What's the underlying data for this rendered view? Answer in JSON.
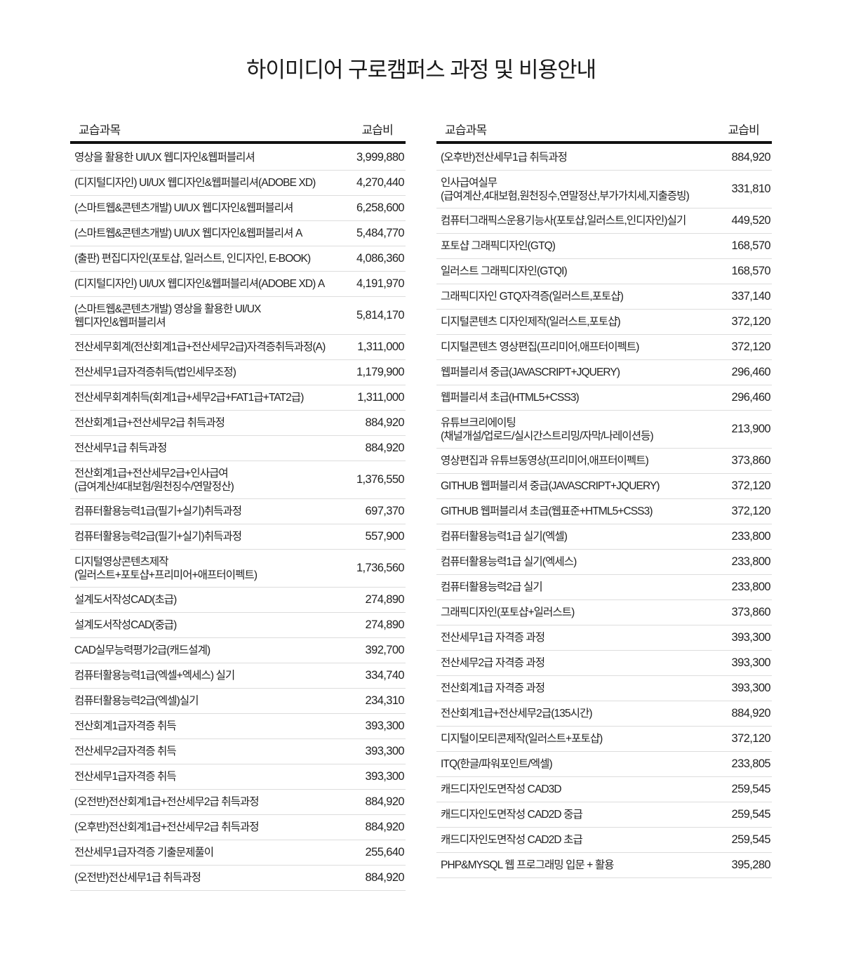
{
  "title": "하이미디어 구로캠퍼스 과정 및 비용안내",
  "tables": [
    {
      "header": {
        "course": "교습과목",
        "fee": "교습비"
      },
      "rows": [
        {
          "course": "영상을 활용한 UI/UX 웹디자인&웹퍼블리셔",
          "fee": "3,999,880"
        },
        {
          "course": "(디지털디자인) UI/UX 웹디자인&웹퍼블리셔(ADOBE XD)",
          "fee": "4,270,440"
        },
        {
          "course": "(스마트웹&콘텐츠개발) UI/UX 웹디자인&웹퍼블리셔",
          "fee": "6,258,600"
        },
        {
          "course": "(스마트웹&콘텐츠개발) UI/UX 웹디자인&웹퍼블리셔 A",
          "fee": "5,484,770"
        },
        {
          "course": "(출판) 편집디자인(포토샵, 일러스트, 인디자인, E-BOOK)",
          "fee": "4,086,360"
        },
        {
          "course": "(디지털디자인) UI/UX 웹디자인&웹퍼블리셔(ADOBE XD) A",
          "fee": "4,191,970"
        },
        {
          "course": "(스마트웹&콘텐츠개발) 영상을 활용한 UI/UX\n웹디자인&웹퍼블리셔",
          "fee": "5,814,170"
        },
        {
          "course": "전산세무회계(전산회계1급+전산세무2급)자격증취득과정(A)",
          "fee": "1,311,000"
        },
        {
          "course": "전산세무1급자격증취득(법인세무조정)",
          "fee": "1,179,900"
        },
        {
          "course": "전산세무회계취득(회계1급+세무2급+FAT1급+TAT2급)",
          "fee": "1,311,000"
        },
        {
          "course": "전산회계1급+전산세무2급 취득과정",
          "fee": "884,920"
        },
        {
          "course": "전산세무1급 취득과정",
          "fee": "884,920"
        },
        {
          "course": "전산회계1급+전산세무2급+인사급여\n(급여계산/4대보험/원천징수/연말정산)",
          "fee": "1,376,550"
        },
        {
          "course": "컴퓨터활용능력1급(필기+실기)취득과정",
          "fee": "697,370"
        },
        {
          "course": "컴퓨터활용능력2급(필기+실기)취득과정",
          "fee": "557,900"
        },
        {
          "course": "디지털영상콘텐츠제작\n(일러스트+포토샵+프리미어+애프터이펙트)",
          "fee": "1,736,560"
        },
        {
          "course": "설계도서작성CAD(초급)",
          "fee": "274,890"
        },
        {
          "course": "설계도서작성CAD(중급)",
          "fee": "274,890"
        },
        {
          "course": "CAD실무능력평가2급(캐드설계)",
          "fee": "392,700"
        },
        {
          "course": "컴퓨터활용능력1급(엑셀+엑세스) 실기",
          "fee": "334,740"
        },
        {
          "course": "컴퓨터활용능력2급(엑셀)실기",
          "fee": "234,310"
        },
        {
          "course": "전산회계1급자격증 취득",
          "fee": "393,300"
        },
        {
          "course": "전산세무2급자격증 취득",
          "fee": "393,300"
        },
        {
          "course": "전산세무1급자격증 취득",
          "fee": "393,300"
        },
        {
          "course": "(오전반)전산회계1급+전산세무2급 취득과정",
          "fee": "884,920"
        },
        {
          "course": "(오후반)전산회계1급+전산세무2급 취득과정",
          "fee": "884,920"
        },
        {
          "course": "전산세무1급자격증 기출문제풀이",
          "fee": "255,640"
        },
        {
          "course": "(오전반)전산세무1급 취득과정",
          "fee": "884,920"
        }
      ]
    },
    {
      "header": {
        "course": "교습과목",
        "fee": "교습비"
      },
      "rows": [
        {
          "course": "(오후반)전산세무1급 취득과정",
          "fee": "884,920"
        },
        {
          "course": "인사급여실무\n(급여계산,4대보험,원천징수,연말정산,부가가치세,지출증빙)",
          "fee": "331,810"
        },
        {
          "course": "컴퓨터그래픽스운용기능사(포토샵,일러스트,인디자인)실기",
          "fee": "449,520"
        },
        {
          "course": "포토샵 그래픽디자인(GTQ)",
          "fee": "168,570"
        },
        {
          "course": "일러스트 그래픽디자인(GTQI)",
          "fee": "168,570"
        },
        {
          "course": "그래픽디자인 GTQ자격증(일러스트,포토샵)",
          "fee": "337,140"
        },
        {
          "course": "디지털콘텐츠 디자인제작(일러스트,포토샵)",
          "fee": "372,120"
        },
        {
          "course": "디지털콘텐츠 영상편집(프리미어,애프터이펙트)",
          "fee": "372,120"
        },
        {
          "course": "웹퍼블리셔 중급(JAVASCRIPT+JQUERY)",
          "fee": "296,460"
        },
        {
          "course": "웹퍼블리셔 초급(HTML5+CSS3)",
          "fee": "296,460"
        },
        {
          "course": "유튜브크리에이팅\n(채널개설/업로드/실시간스트리밍/자막/나레이션등)",
          "fee": "213,900"
        },
        {
          "course": "영상편집과 유튜브동영상(프리미어,애프터이펙트)",
          "fee": "373,860"
        },
        {
          "course": "GITHUB 웹퍼블리셔 중급(JAVASCRIPT+JQUERY)",
          "fee": "372,120"
        },
        {
          "course": "GITHUB 웹퍼블리셔 초급(웹표준+HTML5+CSS3)",
          "fee": "372,120"
        },
        {
          "course": "컴퓨터활용능력1급 실기(엑셀)",
          "fee": "233,800"
        },
        {
          "course": "컴퓨터활용능력1급 실기(엑세스)",
          "fee": "233,800"
        },
        {
          "course": "컴퓨터활용능력2급 실기",
          "fee": "233,800"
        },
        {
          "course": "그래픽디자인(포토샵+일러스트)",
          "fee": "373,860"
        },
        {
          "course": "전산세무1급 자격증 과정",
          "fee": "393,300"
        },
        {
          "course": "전산세무2급 자격증 과정",
          "fee": "393,300"
        },
        {
          "course": "전산회계1급 자격증 과정",
          "fee": "393,300"
        },
        {
          "course": "전산회계1급+전산세무2급(135시간)",
          "fee": "884,920"
        },
        {
          "course": "디지털이모티콘제작(일러스트+포토샵)",
          "fee": "372,120"
        },
        {
          "course": "ITQ(한글/파워포인트/엑셀)",
          "fee": "233,805"
        },
        {
          "course": "캐드디자인도면작성 CAD3D",
          "fee": "259,545"
        },
        {
          "course": "캐드디자인도면작성 CAD2D 중급",
          "fee": "259,545"
        },
        {
          "course": "캐드디자인도면작성 CAD2D 초급",
          "fee": "259,545"
        },
        {
          "course": "PHP&MYSQL 웹 프로그래밍 입문 + 활용",
          "fee": "395,280"
        }
      ]
    }
  ]
}
